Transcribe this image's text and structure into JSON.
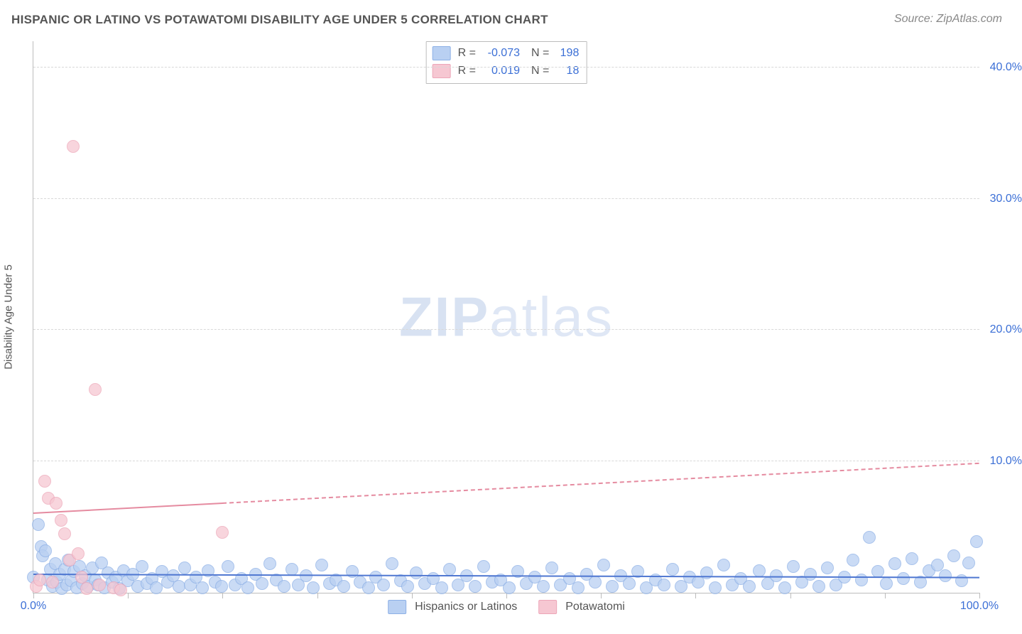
{
  "title": "HISPANIC OR LATINO VS POTAWATOMI DISABILITY AGE UNDER 5 CORRELATION CHART",
  "source_label": "Source: ZipAtlas.com",
  "ylabel": "Disability Age Under 5",
  "watermark": {
    "part1": "ZIP",
    "part2": "atlas"
  },
  "chart": {
    "type": "scatter",
    "xlim": [
      0,
      100
    ],
    "ylim": [
      0,
      42
    ],
    "x_axis": {
      "tick_positions": [
        0,
        10,
        20,
        30,
        40,
        50,
        60,
        70,
        80,
        90,
        100
      ],
      "labels": [
        {
          "value": 0,
          "text": "0.0%"
        },
        {
          "value": 100,
          "text": "100.0%"
        }
      ]
    },
    "y_axis": {
      "gridlines": [
        10,
        20,
        30,
        40
      ],
      "labels": [
        {
          "value": 10,
          "text": "10.0%"
        },
        {
          "value": 20,
          "text": "20.0%"
        },
        {
          "value": 30,
          "text": "30.0%"
        },
        {
          "value": 40,
          "text": "40.0%"
        }
      ]
    },
    "legend_top": {
      "rows": [
        {
          "swatch_fill": "#b9d0f2",
          "swatch_border": "#8db0e6",
          "r_label": "R =",
          "r_value": "-0.073",
          "n_label": "N =",
          "n_value": "198"
        },
        {
          "swatch_fill": "#f6c7d2",
          "swatch_border": "#eda6b8",
          "r_label": "R =",
          "r_value": "0.019",
          "n_label": "N =",
          "n_value": "18"
        }
      ]
    },
    "legend_bottom": {
      "items": [
        {
          "swatch_fill": "#b9d0f2",
          "swatch_border": "#8db0e6",
          "label": "Hispanics or Latinos"
        },
        {
          "swatch_fill": "#f6c7d2",
          "swatch_border": "#eda6b8",
          "label": "Potawatomi"
        }
      ]
    },
    "series": [
      {
        "name": "Hispanics or Latinos",
        "marker_fill": "#b9d0f2",
        "marker_border": "#8db0e6",
        "marker_radius": 8,
        "marker_opacity": 0.75,
        "trend": {
          "color": "#4f77d1",
          "width": 2,
          "y_at_x0": 1.35,
          "y_at_x100": 1.1,
          "dash_start_x": 100
        },
        "points": [
          [
            0,
            1.2
          ],
          [
            0.5,
            5.2
          ],
          [
            0.8,
            3.5
          ],
          [
            1,
            2.8
          ],
          [
            1.3,
            3.2
          ],
          [
            1.5,
            1.0
          ],
          [
            1.8,
            1.8
          ],
          [
            2,
            0.5
          ],
          [
            2.3,
            2.2
          ],
          [
            2.5,
            0.8
          ],
          [
            2.8,
            1.4
          ],
          [
            3,
            0.3
          ],
          [
            3.3,
            1.8
          ],
          [
            3.5,
            0.6
          ],
          [
            3.7,
            2.5
          ],
          [
            4,
            0.9
          ],
          [
            4.3,
            1.6
          ],
          [
            4.6,
            0.4
          ],
          [
            4.9,
            2.0
          ],
          [
            5.2,
            0.7
          ],
          [
            5.5,
            1.3
          ],
          [
            5.8,
            0.5
          ],
          [
            6.2,
            1.9
          ],
          [
            6.5,
            1.0
          ],
          [
            6.8,
            0.6
          ],
          [
            7.2,
            2.3
          ],
          [
            7.5,
            0.4
          ],
          [
            7.9,
            1.5
          ],
          [
            8.3,
            0.8
          ],
          [
            8.7,
            1.2
          ],
          [
            9.1,
            0.3
          ],
          [
            9.5,
            1.7
          ],
          [
            10,
            0.9
          ],
          [
            10.5,
            1.4
          ],
          [
            11,
            0.5
          ],
          [
            11.5,
            2.0
          ],
          [
            12,
            0.7
          ],
          [
            12.5,
            1.1
          ],
          [
            13,
            0.4
          ],
          [
            13.6,
            1.6
          ],
          [
            14.2,
            0.8
          ],
          [
            14.8,
            1.3
          ],
          [
            15.4,
            0.5
          ],
          [
            16,
            1.9
          ],
          [
            16.6,
            0.6
          ],
          [
            17.2,
            1.2
          ],
          [
            17.9,
            0.4
          ],
          [
            18.5,
            1.7
          ],
          [
            19.2,
            0.8
          ],
          [
            19.9,
            0.5
          ],
          [
            20.6,
            2.0
          ],
          [
            21.3,
            0.6
          ],
          [
            22,
            1.1
          ],
          [
            22.7,
            0.4
          ],
          [
            23.5,
            1.4
          ],
          [
            24.2,
            0.7
          ],
          [
            25,
            2.2
          ],
          [
            25.7,
            1.0
          ],
          [
            26.5,
            0.5
          ],
          [
            27.3,
            1.8
          ],
          [
            28,
            0.6
          ],
          [
            28.8,
            1.3
          ],
          [
            29.6,
            0.4
          ],
          [
            30.5,
            2.1
          ],
          [
            31.3,
            0.7
          ],
          [
            32,
            1.0
          ],
          [
            32.8,
            0.5
          ],
          [
            33.7,
            1.6
          ],
          [
            34.5,
            0.8
          ],
          [
            35.4,
            0.4
          ],
          [
            36.2,
            1.2
          ],
          [
            37,
            0.6
          ],
          [
            37.9,
            2.2
          ],
          [
            38.8,
            0.9
          ],
          [
            39.6,
            0.5
          ],
          [
            40.5,
            1.5
          ],
          [
            41.4,
            0.7
          ],
          [
            42.3,
            1.1
          ],
          [
            43.2,
            0.4
          ],
          [
            44,
            1.8
          ],
          [
            44.9,
            0.6
          ],
          [
            45.8,
            1.3
          ],
          [
            46.7,
            0.5
          ],
          [
            47.6,
            2.0
          ],
          [
            48.5,
            0.8
          ],
          [
            49.4,
            1.0
          ],
          [
            50.3,
            0.4
          ],
          [
            51.2,
            1.6
          ],
          [
            52.1,
            0.7
          ],
          [
            53,
            1.2
          ],
          [
            53.9,
            0.5
          ],
          [
            54.8,
            1.9
          ],
          [
            55.7,
            0.6
          ],
          [
            56.7,
            1.1
          ],
          [
            57.6,
            0.4
          ],
          [
            58.5,
            1.4
          ],
          [
            59.4,
            0.8
          ],
          [
            60.3,
            2.1
          ],
          [
            61.2,
            0.5
          ],
          [
            62.1,
            1.3
          ],
          [
            63,
            0.7
          ],
          [
            63.9,
            1.6
          ],
          [
            64.8,
            0.4
          ],
          [
            65.8,
            1.0
          ],
          [
            66.7,
            0.6
          ],
          [
            67.6,
            1.8
          ],
          [
            68.5,
            0.5
          ],
          [
            69.4,
            1.2
          ],
          [
            70.3,
            0.8
          ],
          [
            71.2,
            1.5
          ],
          [
            72.1,
            0.4
          ],
          [
            73,
            2.1
          ],
          [
            73.9,
            0.6
          ],
          [
            74.8,
            1.1
          ],
          [
            75.7,
            0.5
          ],
          [
            76.7,
            1.7
          ],
          [
            77.6,
            0.7
          ],
          [
            78.5,
            1.3
          ],
          [
            79.4,
            0.4
          ],
          [
            80.3,
            2.0
          ],
          [
            81.2,
            0.8
          ],
          [
            82.1,
            1.4
          ],
          [
            83,
            0.5
          ],
          [
            83.9,
            1.9
          ],
          [
            84.8,
            0.6
          ],
          [
            85.7,
            1.2
          ],
          [
            86.6,
            2.5
          ],
          [
            87.5,
            1.0
          ],
          [
            88.4,
            4.2
          ],
          [
            89.3,
            1.6
          ],
          [
            90.2,
            0.7
          ],
          [
            91.1,
            2.2
          ],
          [
            92,
            1.1
          ],
          [
            92.9,
            2.6
          ],
          [
            93.8,
            0.8
          ],
          [
            94.7,
            1.7
          ],
          [
            95.6,
            2.1
          ],
          [
            96.4,
            1.3
          ],
          [
            97.3,
            2.8
          ],
          [
            98.1,
            0.9
          ],
          [
            98.9,
            2.3
          ],
          [
            99.7,
            3.9
          ]
        ]
      },
      {
        "name": "Potawatomi",
        "marker_fill": "#f6c7d2",
        "marker_border": "#eda6b8",
        "marker_radius": 8,
        "marker_opacity": 0.75,
        "trend": {
          "color": "#e58ba0",
          "width": 2,
          "y_at_x0": 6.0,
          "y_at_x100": 9.8,
          "dash_start_x": 20
        },
        "points": [
          [
            0.3,
            0.5
          ],
          [
            0.7,
            1.0
          ],
          [
            1.2,
            8.5
          ],
          [
            1.6,
            7.2
          ],
          [
            2.0,
            0.8
          ],
          [
            2.4,
            6.8
          ],
          [
            2.9,
            5.5
          ],
          [
            3.3,
            4.5
          ],
          [
            3.8,
            2.5
          ],
          [
            4.2,
            34.0
          ],
          [
            4.7,
            3.0
          ],
          [
            5.1,
            1.2
          ],
          [
            5.6,
            0.3
          ],
          [
            6.5,
            15.5
          ],
          [
            7.0,
            0.6
          ],
          [
            8.5,
            0.4
          ],
          [
            9.2,
            0.2
          ],
          [
            20.0,
            4.6
          ]
        ]
      }
    ]
  }
}
